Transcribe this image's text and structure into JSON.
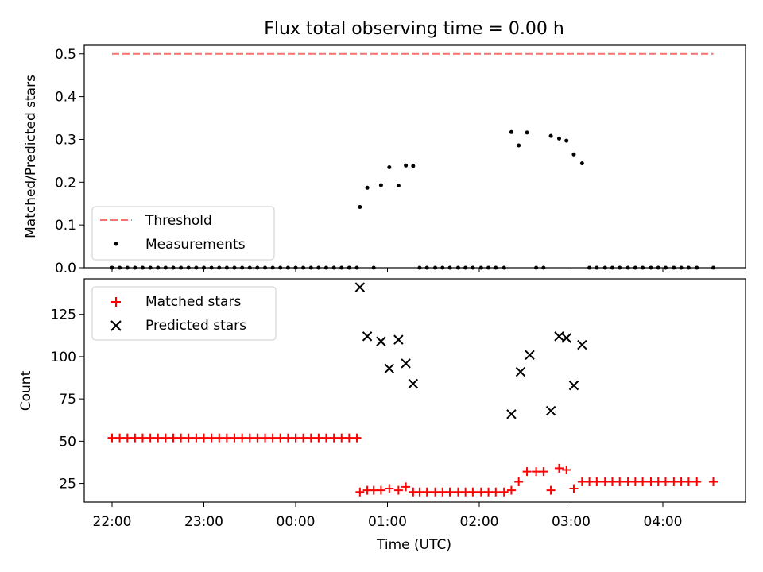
{
  "chart_data": [
    {
      "type": "scatter",
      "title": "Flux total observing time = 0.00 h",
      "xlabel": "",
      "ylabel": "Matched/Predicted stars",
      "ylim": [
        0.0,
        0.52
      ],
      "yticks": [
        "0.0",
        "0.1",
        "0.2",
        "0.3",
        "0.4",
        "0.5"
      ],
      "legend_placement": "lower-left",
      "grid": false,
      "threshold": {
        "name": "Threshold",
        "value": 0.5,
        "color": "#f87171",
        "x_range": [
          0.0,
          6.55
        ]
      },
      "measurements": {
        "name": "Measurements",
        "color": "#000000",
        "x": [
          0.0,
          0.083,
          0.167,
          0.25,
          0.333,
          0.417,
          0.5,
          0.583,
          0.667,
          0.75,
          0.833,
          0.917,
          1.0,
          1.083,
          1.167,
          1.25,
          1.333,
          1.417,
          1.5,
          1.583,
          1.667,
          1.75,
          1.833,
          1.917,
          2.0,
          2.083,
          2.167,
          2.25,
          2.333,
          2.417,
          2.5,
          2.583,
          2.667,
          2.7,
          2.78,
          2.85,
          2.93,
          3.02,
          3.12,
          3.2,
          3.28,
          3.35,
          3.43,
          3.52,
          3.6,
          3.68,
          3.77,
          3.85,
          3.93,
          4.02,
          4.1,
          4.18,
          4.27,
          4.35,
          4.43,
          4.52,
          4.62,
          4.7,
          4.78,
          4.87,
          4.95,
          5.03,
          5.12,
          5.2,
          5.28,
          5.37,
          5.45,
          5.53,
          5.62,
          5.7,
          5.78,
          5.87,
          5.95,
          6.03,
          6.12,
          6.2,
          6.28,
          6.37,
          6.55
        ],
        "y": [
          0,
          0,
          0,
          0,
          0,
          0,
          0,
          0,
          0,
          0,
          0,
          0,
          0,
          0,
          0,
          0,
          0,
          0,
          0,
          0,
          0,
          0,
          0,
          0,
          0,
          0,
          0,
          0,
          0,
          0,
          0,
          0,
          0,
          0.142,
          0.187,
          0,
          0.193,
          0.235,
          0.192,
          0.239,
          0.238,
          0,
          0,
          0,
          0,
          0,
          0,
          0,
          0,
          0,
          0,
          0,
          0,
          0.317,
          0.286,
          0.316,
          0,
          0,
          0.308,
          0.302,
          0.297,
          0.265,
          0.244,
          0,
          0,
          0,
          0,
          0,
          0,
          0,
          0,
          0,
          0,
          0,
          0,
          0,
          0,
          0,
          0
        ]
      }
    },
    {
      "type": "scatter",
      "xlabel": "Time (UTC)",
      "ylabel": "Count",
      "ylim": [
        14,
        146
      ],
      "yticks": [
        "25",
        "50",
        "75",
        "100",
        "125"
      ],
      "xticks": [
        "22:00",
        "23:00",
        "00:00",
        "01:00",
        "02:00",
        "03:00",
        "04:00"
      ],
      "legend_placement": "top-left",
      "grid": false,
      "series": [
        {
          "name": "Matched stars",
          "marker": "plus",
          "color": "#ff0000",
          "x": [
            0.0,
            0.083,
            0.167,
            0.25,
            0.333,
            0.417,
            0.5,
            0.583,
            0.667,
            0.75,
            0.833,
            0.917,
            1.0,
            1.083,
            1.167,
            1.25,
            1.333,
            1.417,
            1.5,
            1.583,
            1.667,
            1.75,
            1.833,
            1.917,
            2.0,
            2.083,
            2.167,
            2.25,
            2.333,
            2.417,
            2.5,
            2.583,
            2.667,
            2.7,
            2.78,
            2.85,
            2.93,
            3.02,
            3.12,
            3.2,
            3.28,
            3.35,
            3.43,
            3.52,
            3.6,
            3.68,
            3.77,
            3.85,
            3.93,
            4.02,
            4.1,
            4.18,
            4.27,
            4.35,
            4.43,
            4.52,
            4.62,
            4.7,
            4.78,
            4.87,
            4.95,
            5.03,
            5.12,
            5.2,
            5.28,
            5.37,
            5.45,
            5.53,
            5.62,
            5.7,
            5.78,
            5.87,
            5.95,
            6.03,
            6.12,
            6.2,
            6.28,
            6.37,
            6.55
          ],
          "y": [
            52,
            52,
            52,
            52,
            52,
            52,
            52,
            52,
            52,
            52,
            52,
            52,
            52,
            52,
            52,
            52,
            52,
            52,
            52,
            52,
            52,
            52,
            52,
            52,
            52,
            52,
            52,
            52,
            52,
            52,
            52,
            52,
            52,
            20,
            21,
            21,
            21,
            22,
            21,
            23,
            20,
            20,
            20,
            20,
            20,
            20,
            20,
            20,
            20,
            20,
            20,
            20,
            20,
            21,
            26,
            32,
            32,
            32,
            21,
            34,
            33,
            22,
            26,
            26,
            26,
            26,
            26,
            26,
            26,
            26,
            26,
            26,
            26,
            26,
            26,
            26,
            26,
            26,
            26
          ]
        },
        {
          "name": "Predicted stars",
          "marker": "x",
          "color": "#000000",
          "x": [
            2.7,
            2.78,
            2.93,
            3.02,
            3.12,
            3.2,
            3.28,
            4.35,
            4.45,
            4.55,
            4.78,
            4.87,
            4.95,
            5.03,
            5.12
          ],
          "y": [
            141,
            112,
            109,
            93,
            110,
            96,
            84,
            66,
            91,
            101,
            68,
            112,
            111,
            83,
            107
          ]
        }
      ]
    }
  ]
}
